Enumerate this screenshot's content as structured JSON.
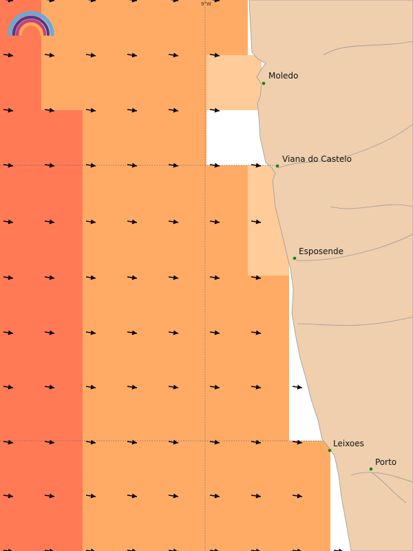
{
  "map": {
    "grid_label": "9°W",
    "colors": {
      "sea_dark": "#ff7a55",
      "sea_mid": "#ffab66",
      "sea_light": "#ffcb99",
      "land": "#efcfae",
      "coast": "#9a9a9a",
      "arrow": "#000000",
      "place_dot": "#0a8a0a"
    },
    "places": [
      {
        "name": "Moledo"
      },
      {
        "name": "Viana do Castelo"
      },
      {
        "name": "Esposende"
      },
      {
        "name": "Leixoes"
      },
      {
        "name": "Porto"
      }
    ],
    "logo": {
      "name": "rainbow-logo"
    }
  }
}
